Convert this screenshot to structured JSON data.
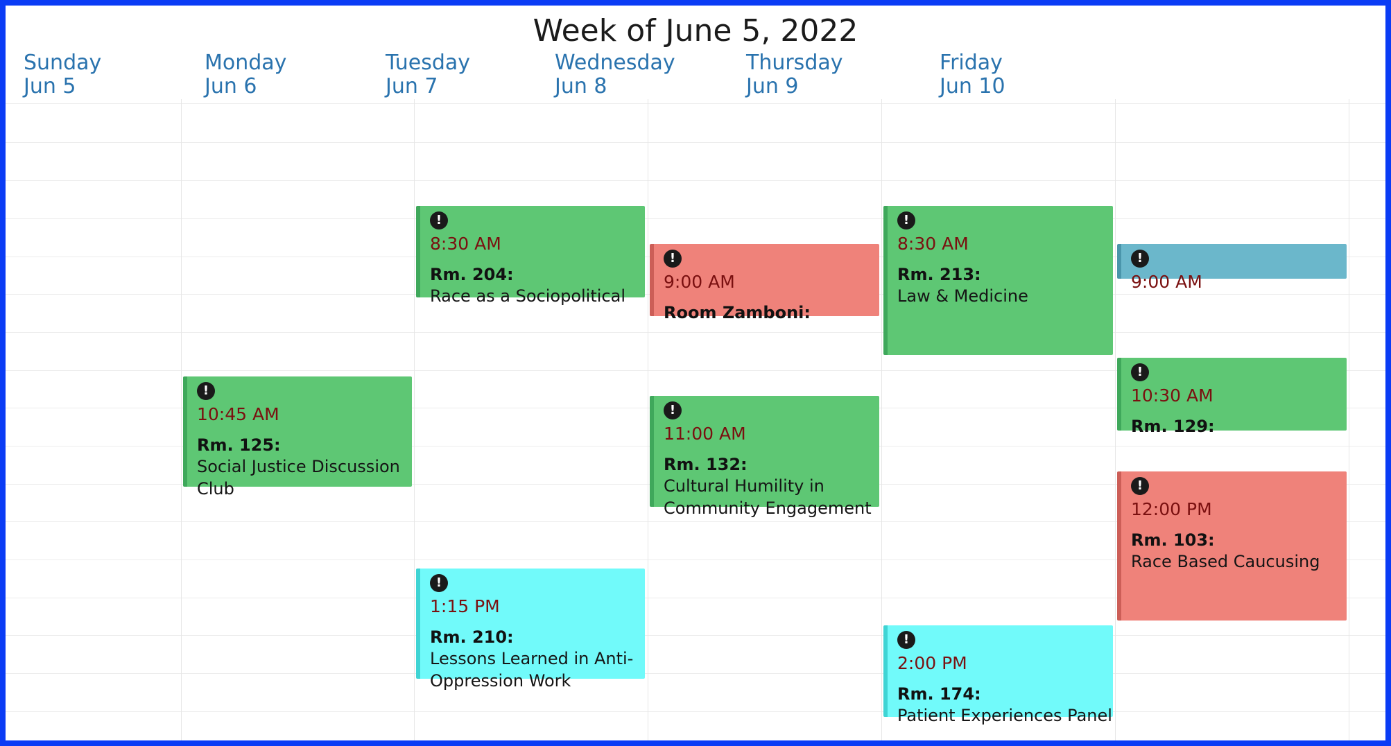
{
  "title": "Week of June 5, 2022",
  "days": [
    {
      "name": "Sunday",
      "date": "Jun 5"
    },
    {
      "name": "Monday",
      "date": "Jun 6"
    },
    {
      "name": "Tuesday",
      "date": "Jun 7"
    },
    {
      "name": "Wednesday",
      "date": "Jun 8"
    },
    {
      "name": "Thursday",
      "date": "Jun 9"
    },
    {
      "name": "Friday",
      "date": "Jun 10"
    }
  ],
  "events": {
    "mon_1045": {
      "time": "10:45 AM",
      "room": "Rm. 125:",
      "name": "Social Justice Discussion Club",
      "color": "#5ec774",
      "icon": "exclamation-icon"
    },
    "tue_0830": {
      "time": "8:30 AM",
      "room": "Rm. 204:",
      "name": "Race as a Sociopolitical",
      "color": "#5ec774",
      "icon": "exclamation-icon"
    },
    "tue_1315": {
      "time": "1:15 PM",
      "room": "Rm. 210:",
      "name": "Lessons Learned in Anti-Oppression Work",
      "color": "#71fafa",
      "icon": "exclamation-icon"
    },
    "wed_0900": {
      "time": "9:00 AM",
      "room": "Room Zamboni:",
      "color": "#ef827a",
      "icon": "exclamation-icon"
    },
    "wed_1100": {
      "time": "11:00 AM",
      "room": "Rm. 132:",
      "name": "Cultural Humility in Community Engagement",
      "color": "#5ec774",
      "icon": "exclamation-icon"
    },
    "thu_0830": {
      "time": "8:30 AM",
      "room": "Rm. 213:",
      "name": "Law & Medicine",
      "color": "#5ec774",
      "icon": "exclamation-icon"
    },
    "thu_1400": {
      "time": "2:00 PM",
      "room": "Rm. 174:",
      "name": "Patient Experiences Panel",
      "color": "#71fafa",
      "icon": "exclamation-icon"
    },
    "fri_0900": {
      "time": "9:00 AM",
      "color": "#6bb7cb",
      "icon": "exclamation-icon"
    },
    "fri_1030": {
      "time": "10:30 AM",
      "room": "Rm. 129:",
      "color": "#5ec774",
      "icon": "exclamation-icon"
    },
    "fri_1200": {
      "time": "12:00 PM",
      "room": "Rm. 103:",
      "name": "Race Based Caucusing",
      "color": "#ef827a",
      "icon": "exclamation-icon"
    }
  }
}
